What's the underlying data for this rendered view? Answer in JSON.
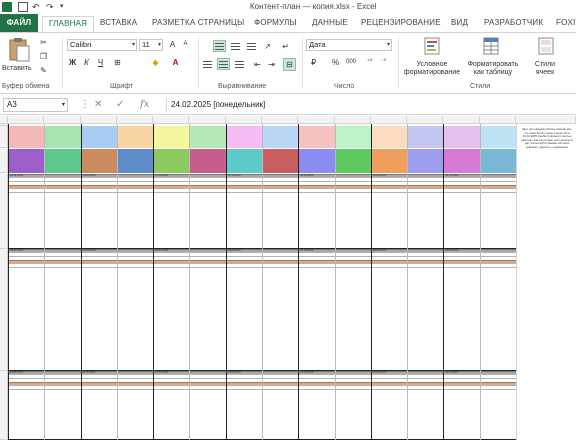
{
  "window": {
    "title": "Контент-план — копия.xlsx - Excel"
  },
  "ribbon_tabs": [
    {
      "label": "ФАЙЛ"
    },
    {
      "label": "ГЛАВНАЯ"
    },
    {
      "label": "ВСТАВКА"
    },
    {
      "label": "РАЗМЕТКА СТРАНИЦЫ"
    },
    {
      "label": "ФОРМУЛЫ"
    },
    {
      "label": "ДАННЫЕ"
    },
    {
      "label": "РЕЦЕНЗИРОВАНИЕ"
    },
    {
      "label": "ВИД"
    },
    {
      "label": "РАЗРАБОТЧИК"
    },
    {
      "label": "Foxit"
    }
  ],
  "ribbon": {
    "clipboard": {
      "paste_label": "Вставить",
      "group_label": "Буфер обмена"
    },
    "font": {
      "family": "Calibri",
      "size": "11",
      "bold": "Ж",
      "italic": "К",
      "underline": "Ч",
      "group_label": "Шрифт"
    },
    "alignment": {
      "group_label": "Выравнивание"
    },
    "number": {
      "format": "Дата",
      "percent": "%",
      "thousands": "000",
      "group_label": "Число"
    },
    "styles": {
      "conditional": "Условное форматирование",
      "format_table": "Форматировать как таблицу",
      "cell_styles": "Стили ячеек",
      "group_label": "Стили"
    }
  },
  "formula_bar": {
    "cell_ref": "A3",
    "fx": "fx",
    "content": "24.02.2025 [понедельник]"
  },
  "sheet": {
    "swatch_row1": [
      "#f4b8b8",
      "#a8e4b0",
      "#a9cdf2",
      "#f9d5a6",
      "#f6f6a0",
      "#b4e8b4",
      "#f3bdf3",
      "#b9d7f5",
      "#f6c1c1",
      "#bdf3c8",
      "#fcdcc0",
      "#c6c6f5",
      "#e6c1f0",
      "#bfe3f5"
    ],
    "swatch_row2": [
      "#9e5ec9",
      "#5ec78c",
      "#c98c5e",
      "#5e8cc9",
      "#8cc95e",
      "#c95e8c",
      "#5ec9c9",
      "#c95e5e",
      "#8c8cf0",
      "#5ec95e",
      "#f09e5e",
      "#9e9ef0",
      "#d67ad6",
      "#7ab8d6"
    ],
    "week_dates": [
      [
        "24.02.2025",
        "25.02.2025",
        "26.02.2025",
        "27.02.2025",
        "28.02.2025",
        "01.03.2025",
        "02.03.2025"
      ],
      [
        "03.03.2025",
        "04.03.2025",
        "05.03.2025",
        "06.03.2025",
        "07.03.2025",
        "08.03.2025",
        "09.03.2025"
      ],
      [
        "10.03.2025",
        "11.03.2025",
        "12.03.2025",
        "13.03.2025",
        "14.03.2025",
        "15.03.2025",
        "16.03.2025"
      ]
    ],
    "note": "Цвет для каждой рубрики разный, все, что ниже 40-ой строки и ниже даты 24.02.2025 [пробел] является частью рабочего контент-плана, для пересчета дат, используйте данные обо всех рубриках, удалить с подкраской."
  }
}
